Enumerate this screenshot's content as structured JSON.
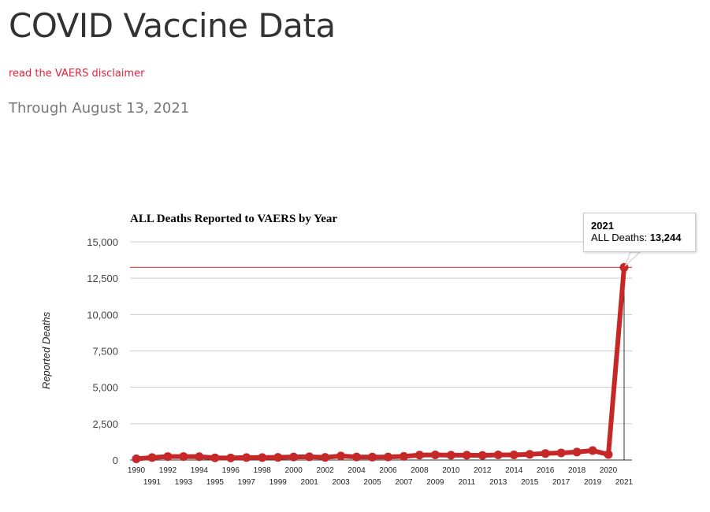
{
  "page": {
    "title": "COVID Vaccine Data",
    "disclaimer_link": "read the VAERS disclaimer",
    "subtitle": "Through August 13, 2021"
  },
  "chart_data": {
    "type": "line",
    "title": "ALL Deaths Reported to VAERS by Year",
    "xlabel": "",
    "ylabel": "Reported Deaths",
    "ylim": [
      0,
      15000
    ],
    "yticks": [
      "0",
      "2,500",
      "5,000",
      "7,500",
      "10,000",
      "12,500",
      "15,000"
    ],
    "ytick_values": [
      0,
      2500,
      5000,
      7500,
      10000,
      12500,
      15000
    ],
    "series": [
      {
        "name": "ALL Deaths",
        "color": "#c62828"
      }
    ],
    "x": [
      "1990",
      "1991",
      "1992",
      "1993",
      "1994",
      "1995",
      "1996",
      "1997",
      "1998",
      "1999",
      "2000",
      "2001",
      "2002",
      "2003",
      "2004",
      "2005",
      "2006",
      "2007",
      "2008",
      "2009",
      "2010",
      "2011",
      "2012",
      "2013",
      "2014",
      "2015",
      "2016",
      "2017",
      "2018",
      "2019",
      "2020",
      "2021"
    ],
    "values": [
      80,
      170,
      240,
      240,
      230,
      150,
      140,
      170,
      170,
      180,
      210,
      220,
      180,
      280,
      210,
      200,
      210,
      250,
      340,
      350,
      330,
      330,
      320,
      350,
      350,
      390,
      450,
      490,
      550,
      650,
      380,
      13244
    ],
    "highlight_line": 13244,
    "tooltip": {
      "title": "2021",
      "label": "ALL Deaths:",
      "value": "13,244"
    },
    "grid": true
  }
}
